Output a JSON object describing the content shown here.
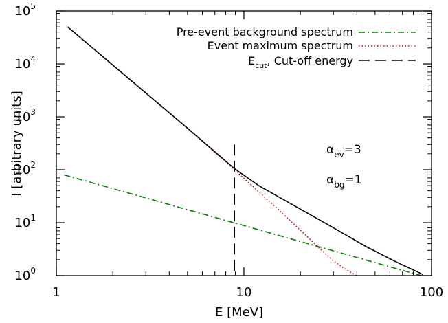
{
  "chart_data": {
    "type": "line",
    "xscale": "log",
    "yscale": "log",
    "xlim": [
      1,
      100
    ],
    "ylim": [
      1,
      100000
    ],
    "xlabel": "E [MeV]",
    "ylabel": "I [arbitrary units]",
    "x_ticks": [
      {
        "value": 1,
        "label": "1"
      },
      {
        "value": 10,
        "label": "10"
      },
      {
        "value": 100,
        "label": "100"
      }
    ],
    "y_ticks": [
      {
        "value": 1,
        "base": "10",
        "exp": "0"
      },
      {
        "value": 10,
        "base": "10",
        "exp": "1"
      },
      {
        "value": 100,
        "base": "10",
        "exp": "2"
      },
      {
        "value": 1000,
        "base": "10",
        "exp": "3"
      },
      {
        "value": 10000,
        "base": "10",
        "exp": "4"
      },
      {
        "value": 100000,
        "base": "10",
        "exp": "5"
      }
    ],
    "legend_position": "top-right",
    "series": [
      {
        "name": "Pre-event background spectrum",
        "color": "#008000",
        "dash": "dash-dot",
        "x": [
          1.1,
          2,
          5,
          10,
          20,
          50,
          90
        ],
        "y": [
          80,
          44,
          17.6,
          8.8,
          4.4,
          1.76,
          0.98
        ]
      },
      {
        "name": "Event maximum spectrum",
        "color": "#cc0000",
        "dash": "dotted",
        "x": [
          1.15,
          2,
          3,
          5,
          8.9,
          12,
          15,
          20,
          25,
          30,
          35,
          42
        ],
        "y": [
          50000,
          9510,
          2818,
          609,
          100,
          38.3,
          18.7,
          7.2,
          3.4,
          1.9,
          1.3,
          0.9
        ]
      },
      {
        "name": "",
        "color": "#000000",
        "dash": "solid",
        "x": [
          1.15,
          2,
          3,
          5,
          8.9,
          12,
          15,
          20,
          30,
          45,
          65,
          90
        ],
        "y": [
          50000,
          9500,
          2820,
          610,
          105,
          50,
          32,
          18,
          8,
          3.5,
          1.8,
          1.05
        ]
      }
    ],
    "cutoff": {
      "legend_main": "E",
      "legend_sub": "cut",
      "legend_rest": ", Cut-off energy",
      "x": 8.9,
      "y_top": 300,
      "color": "#000000",
      "dash": "long-dash"
    },
    "annotations": [
      {
        "symbol": "α",
        "sub": "ev",
        "rest": "=3"
      },
      {
        "symbol": "α",
        "sub": "bg",
        "rest": "=1"
      }
    ]
  }
}
